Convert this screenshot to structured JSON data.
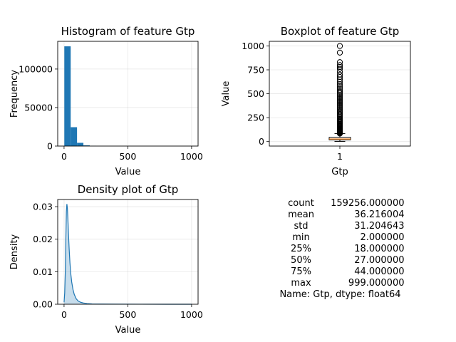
{
  "chart_data": [
    {
      "type": "bar",
      "title": "Histogram of feature Gtp",
      "xlabel": "Value",
      "ylabel": "Frequency",
      "xlim": [
        -49.85,
        1050.85
      ],
      "ylim": [
        0,
        136000
      ],
      "xticks": [
        "0",
        "500",
        "1000"
      ],
      "yticks": [
        "0",
        "50000",
        "100000"
      ],
      "bins": [
        {
          "x0": 2.0,
          "x1": 51.85,
          "count": 129500
        },
        {
          "x0": 51.85,
          "x1": 101.7,
          "count": 24500
        },
        {
          "x0": 101.7,
          "x1": 151.55,
          "count": 4200
        },
        {
          "x0": 151.55,
          "x1": 201.4,
          "count": 900
        },
        {
          "x0": 201.4,
          "x1": 251.25,
          "count": 150
        }
      ],
      "color": "#1f77b4",
      "grid": true
    },
    {
      "type": "boxplot",
      "title": "Boxplot of feature Gtp",
      "xlabel": "Gtp",
      "ylabel": "Value",
      "xticks": [
        "1"
      ],
      "yticks": [
        "0",
        "250",
        "500",
        "750",
        "1000"
      ],
      "ylim": [
        -47,
        1048
      ],
      "box": {
        "min": 2.0,
        "q1": 18.0,
        "median": 27.0,
        "q3": 44.0,
        "whisker_high": 83.0
      },
      "outliers": [
        84,
        88,
        92,
        96,
        100,
        105,
        110,
        115,
        120,
        126,
        132,
        138,
        145,
        152,
        160,
        168,
        176,
        185,
        195,
        205,
        215,
        225,
        236,
        248,
        260,
        272,
        285,
        298,
        312,
        326,
        340,
        355,
        370,
        385,
        400,
        415,
        430,
        445,
        460,
        475,
        490,
        505,
        520,
        540,
        560,
        580,
        600,
        625,
        650,
        675,
        700,
        730,
        760,
        780,
        800,
        830,
        930,
        999
      ],
      "median_color": "#ff7f0e",
      "grid": true
    },
    {
      "type": "area",
      "title": "Density plot of Gtp",
      "xlabel": "Value",
      "ylabel": "Density",
      "xlim": [
        -49.85,
        1050.85
      ],
      "ylim": [
        0,
        0.0322
      ],
      "xticks": [
        "0",
        "500",
        "1000"
      ],
      "yticks": [
        "0.00",
        "0.01",
        "0.02",
        "0.03"
      ],
      "x": [
        0,
        5,
        10,
        14,
        18,
        22,
        26,
        30,
        34,
        40,
        46,
        52,
        60,
        70,
        80,
        95,
        110,
        130,
        150,
        180,
        220,
        280,
        400,
        600,
        800,
        1000
      ],
      "y": [
        0.0006,
        0.0035,
        0.0105,
        0.0205,
        0.0285,
        0.0308,
        0.0296,
        0.0262,
        0.0222,
        0.017,
        0.0128,
        0.0096,
        0.0068,
        0.0045,
        0.003,
        0.0017,
        0.001,
        0.0006,
        0.0004,
        0.0002,
        0.0001,
        5e-05,
        2e-05,
        8e-06,
        4e-06,
        2e-06
      ],
      "color": "#1f77b4",
      "grid": true
    }
  ],
  "stats": {
    "rows": [
      {
        "name": "count",
        "value": "159256.000000"
      },
      {
        "name": "mean",
        "value": "36.216004"
      },
      {
        "name": "std",
        "value": "31.204643"
      },
      {
        "name": "min",
        "value": "2.000000"
      },
      {
        "name": "25%",
        "value": "18.000000"
      },
      {
        "name": "50%",
        "value": "27.000000"
      },
      {
        "name": "75%",
        "value": "44.000000"
      },
      {
        "name": "max",
        "value": "999.000000"
      }
    ],
    "footer": "Name: Gtp, dtype: float64"
  }
}
